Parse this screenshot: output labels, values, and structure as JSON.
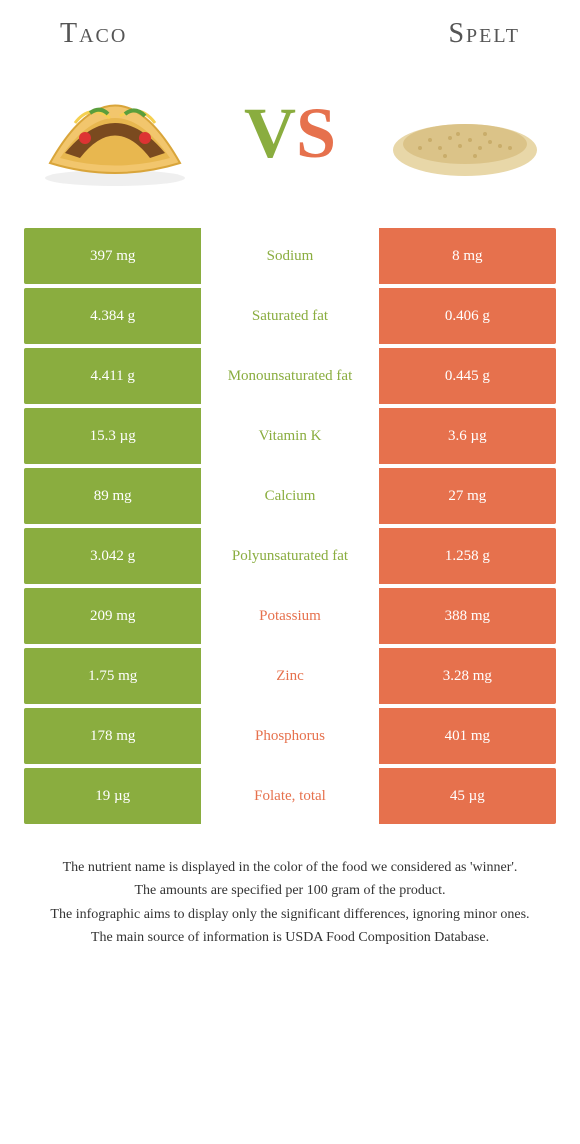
{
  "colors": {
    "green": "#8aad3f",
    "orange": "#e6714d",
    "mid_bg": "#ffffff"
  },
  "header": {
    "left": "Taco",
    "right": "Spelt"
  },
  "vs": {
    "v": "V",
    "s": "S"
  },
  "rows": [
    {
      "left": "397 mg",
      "label": "Sodium",
      "right": "8 mg",
      "winner": "left"
    },
    {
      "left": "4.384 g",
      "label": "Saturated fat",
      "right": "0.406 g",
      "winner": "left"
    },
    {
      "left": "4.411 g",
      "label": "Monounsaturated fat",
      "right": "0.445 g",
      "winner": "left"
    },
    {
      "left": "15.3 µg",
      "label": "Vitamin K",
      "right": "3.6 µg",
      "winner": "left"
    },
    {
      "left": "89 mg",
      "label": "Calcium",
      "right": "27 mg",
      "winner": "left"
    },
    {
      "left": "3.042 g",
      "label": "Polyunsaturated fat",
      "right": "1.258 g",
      "winner": "left"
    },
    {
      "left": "209 mg",
      "label": "Potassium",
      "right": "388 mg",
      "winner": "right"
    },
    {
      "left": "1.75 mg",
      "label": "Zinc",
      "right": "3.28 mg",
      "winner": "right"
    },
    {
      "left": "178 mg",
      "label": "Phosphorus",
      "right": "401 mg",
      "winner": "right"
    },
    {
      "left": "19 µg",
      "label": "Folate, total",
      "right": "45 µg",
      "winner": "right"
    }
  ],
  "notes": [
    "The nutrient name is displayed in the color of the food we considered as 'winner'.",
    "The amounts are specified per 100 gram of the product.",
    "The infographic aims to display only the significant differences, ignoring minor ones.",
    "The main source of information is USDA Food Composition Database."
  ]
}
